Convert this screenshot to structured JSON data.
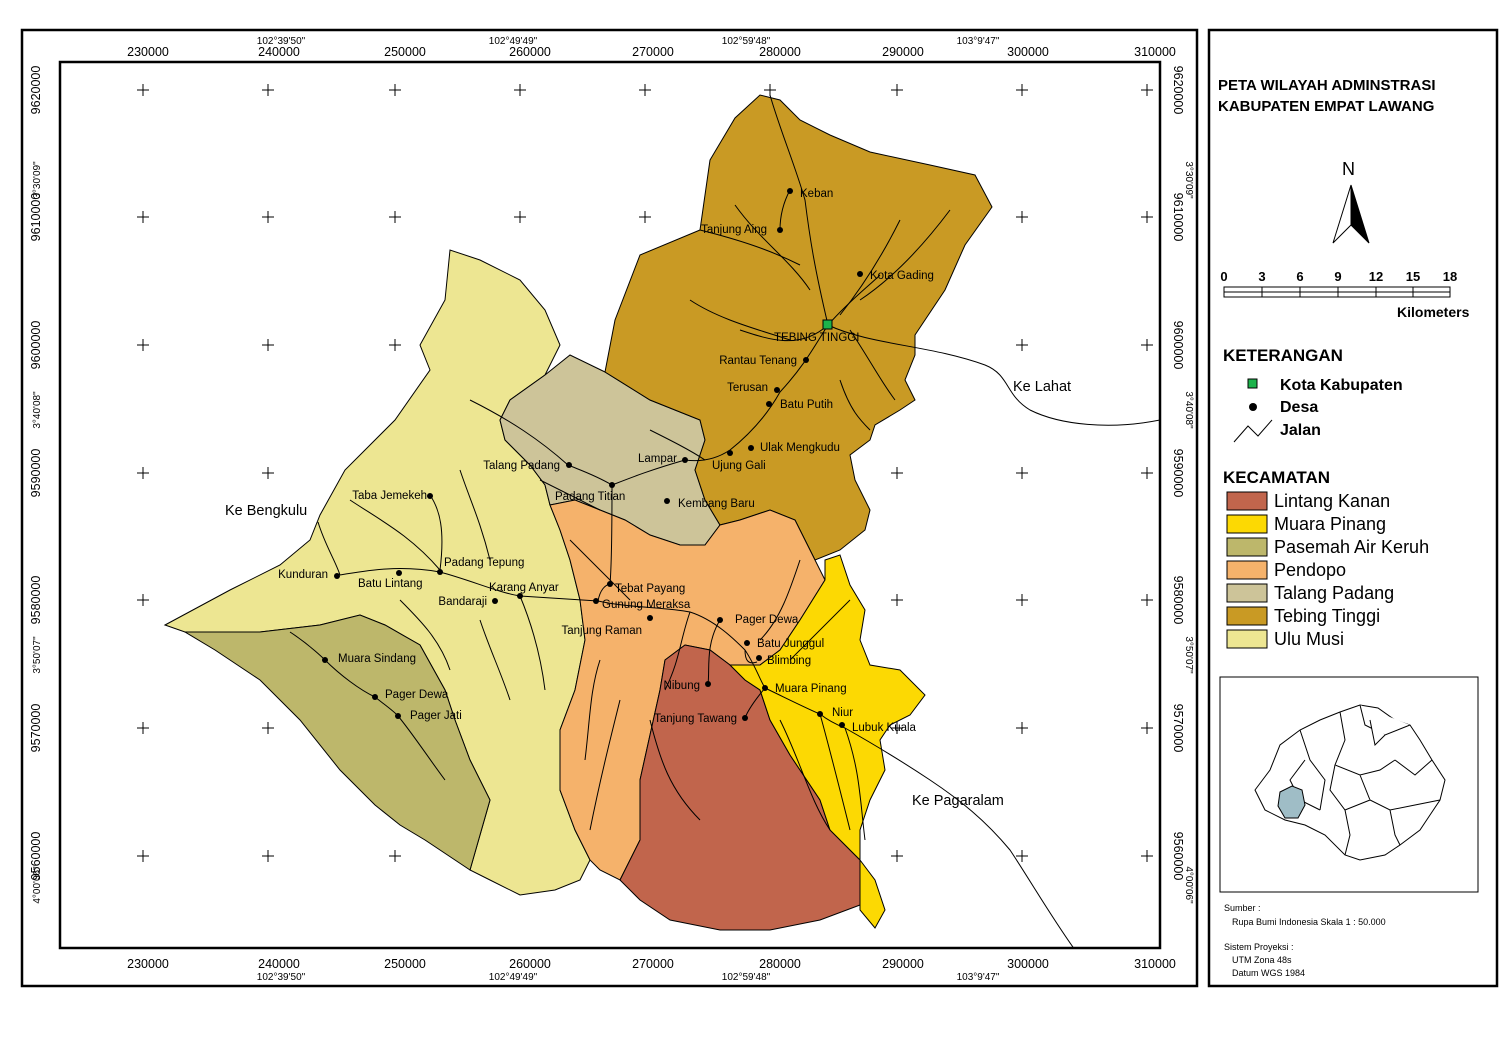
{
  "title_lines": [
    "PETA WILAYAH ADMINSTRASI",
    "KABUPATEN EMPAT LAWANG"
  ],
  "axes": {
    "easting_ticks": [
      "230000",
      "240000",
      "250000",
      "260000",
      "270000",
      "280000",
      "290000",
      "300000",
      "310000"
    ],
    "northing_ticks": [
      "9620000",
      "9610000",
      "9600000",
      "9590000",
      "9580000",
      "9570000",
      "9560000"
    ],
    "longitude_labels": [
      "102°39'50\"",
      "102°49'49\"",
      "102°59'48\"",
      "103°9'47\""
    ],
    "latitude_labels": [
      "3°30'09\"",
      "3°40'08\"",
      "3°50'07\"",
      "4°00'06\""
    ]
  },
  "directions": {
    "lahat": "Ke Lahat",
    "bengkulu": "Ke Bengkulu",
    "pagaralam": "Ke Pagaralam"
  },
  "capital": "TEBING TINGGI",
  "villages": [
    "Keban",
    "Tanjung Aing",
    "Kota Gading",
    "Rantau Tenang",
    "Terusan",
    "Batu Putih",
    "Ulak Mengkudu",
    "Lampar",
    "Ujung Gali",
    "Talang Padang",
    "Padang Titian",
    "Kembang Baru",
    "Taba Jemekeh",
    "Padang Tepung",
    "Kunduran",
    "Batu Lintang",
    "Karang Anyar",
    "Bandaraji",
    "Tebat Payang",
    "Gunung Meraksa",
    "Tanjung Raman",
    "Pager Dewa",
    "Batu Junggul",
    "Blimbing",
    "Muara Sindang",
    "Pager Dewa",
    "Pager Jati",
    "Nibung",
    "Muara Pinang",
    "Tanjung Tawang",
    "Niur",
    "Lubuk Kuala"
  ],
  "north_label": "N",
  "scale": {
    "ticks": [
      "0",
      "3",
      "6",
      "9",
      "12",
      "15",
      "18"
    ],
    "unit": "Kilometers"
  },
  "legend": {
    "heading": "KETERANGAN",
    "items": [
      {
        "label": "Kota Kabupaten",
        "symbol": "green-square-icon"
      },
      {
        "label": "Desa",
        "symbol": "black-dot-icon"
      },
      {
        "label": "Jalan",
        "symbol": "road-line-icon"
      }
    ]
  },
  "kecamatan": {
    "heading": "KECAMATAN",
    "items": [
      {
        "label": "Lintang Kanan",
        "color": "#c1654c"
      },
      {
        "label": "Muara Pinang",
        "color": "#fcd903"
      },
      {
        "label": "Pasemah Air Keruh",
        "color": "#bdb76b"
      },
      {
        "label": "Pendopo",
        "color": "#f5b26b"
      },
      {
        "label": "Talang Padang",
        "color": "#cdc499"
      },
      {
        "label": "Tebing Tinggi",
        "color": "#c99a24"
      },
      {
        "label": "Ulu Musi",
        "color": "#ede692"
      }
    ]
  },
  "source": {
    "heading": "Sumber :",
    "text": "Rupa Bumi Indonesia Skala 1 : 50.000"
  },
  "projection": {
    "heading": "Sistem Proyeksi :",
    "lines": [
      "UTM Zona 48s",
      "Datum WGS 1984"
    ]
  }
}
